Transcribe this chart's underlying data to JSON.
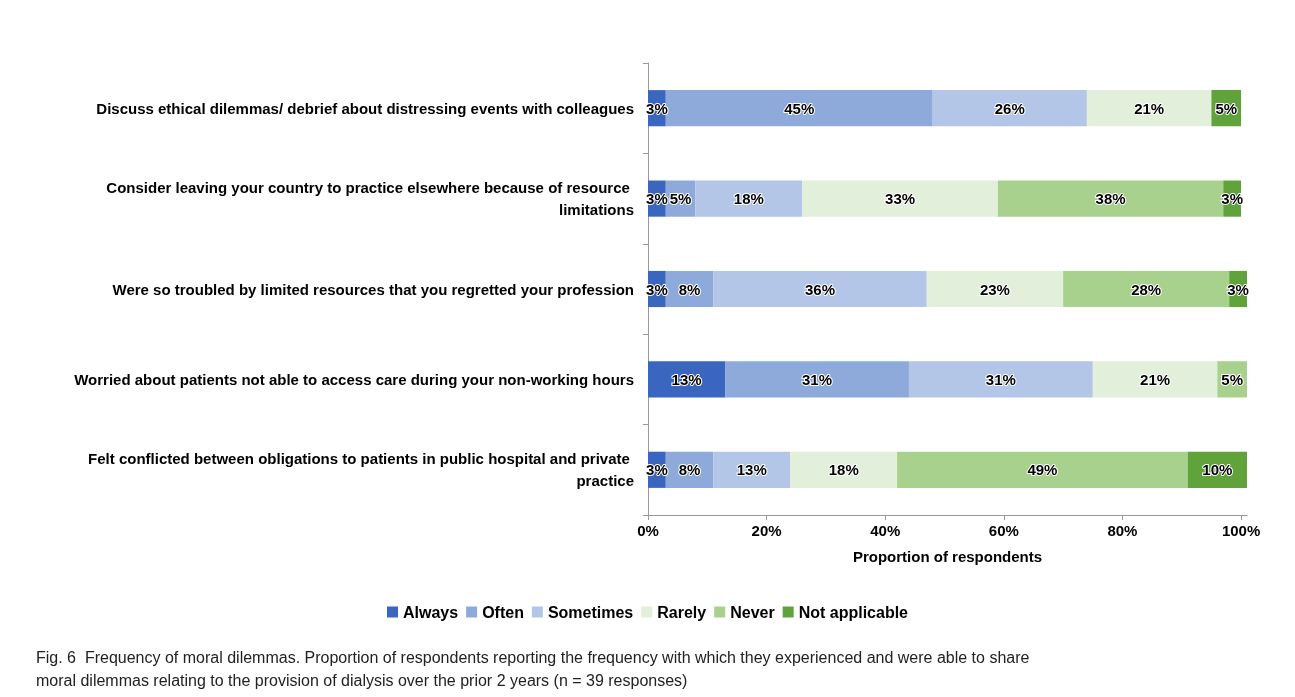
{
  "chart_data": {
    "type": "bar",
    "orientation": "horizontal",
    "stacked": true,
    "categories": [
      "Discuss ethical dilemmas/ debrief about distressing events with colleagues",
      "Consider leaving your country to practice elsewhere because of resource limitations",
      "Were so troubled by limited resources that you regretted your profession",
      "Worried about patients not able to access care during your non-working hours",
      "Felt conflicted between obligations to patients in public hospital and private practice"
    ],
    "series": [
      {
        "name": "Always",
        "color": "#3a66c0",
        "values": [
          3,
          3,
          3,
          13,
          3
        ],
        "value_labels": [
          "3%",
          "3%",
          "3%",
          "13%",
          "3%"
        ]
      },
      {
        "name": "Often",
        "color": "#8eaadb",
        "values": [
          45,
          5,
          8,
          31,
          8
        ],
        "value_labels": [
          "45%",
          "5%",
          "8%",
          "31%",
          "8%"
        ]
      },
      {
        "name": "Sometimes",
        "color": "#b4c6e7",
        "values": [
          26,
          18,
          36,
          31,
          13
        ],
        "value_labels": [
          "26%",
          "18%",
          "36%",
          "31%",
          "13%"
        ]
      },
      {
        "name": "Rarely",
        "color": "#e2efda",
        "values": [
          21,
          33,
          23,
          21,
          18
        ],
        "value_labels": [
          "21%",
          "33%",
          "23%",
          "21%",
          "18%"
        ]
      },
      {
        "name": "Never",
        "color": "#a9d18e",
        "values": [
          null,
          38,
          28,
          5,
          49
        ],
        "value_labels": [
          null,
          "38%",
          "28%",
          "5%",
          "49%"
        ]
      },
      {
        "name": "Not applicable",
        "color": "#5fa33a",
        "values": [
          5,
          3,
          3,
          null,
          10
        ],
        "value_labels": [
          "5%",
          "3%",
          "3%",
          null,
          "10%"
        ]
      }
    ],
    "xlim": [
      0,
      101
    ],
    "xticks": [
      {
        "value": 0,
        "label": "0%"
      },
      {
        "value": 20,
        "label": "20%"
      },
      {
        "value": 40,
        "label": "40%"
      },
      {
        "value": 60,
        "label": "60%"
      },
      {
        "value": 80,
        "label": "80%"
      },
      {
        "value": 100,
        "label": "100%"
      }
    ],
    "xlabel": "Proportion of respondents",
    "legend": "bottom",
    "grid": false,
    "annotations": [
      "Fig. 6  Frequency of moral dilemmas. Proportion of respondents reporting the frequency with which they experienced and were able to share moral dilemmas relating to the provision of dialysis over the prior 2 years (n = 39 responses)"
    ]
  }
}
